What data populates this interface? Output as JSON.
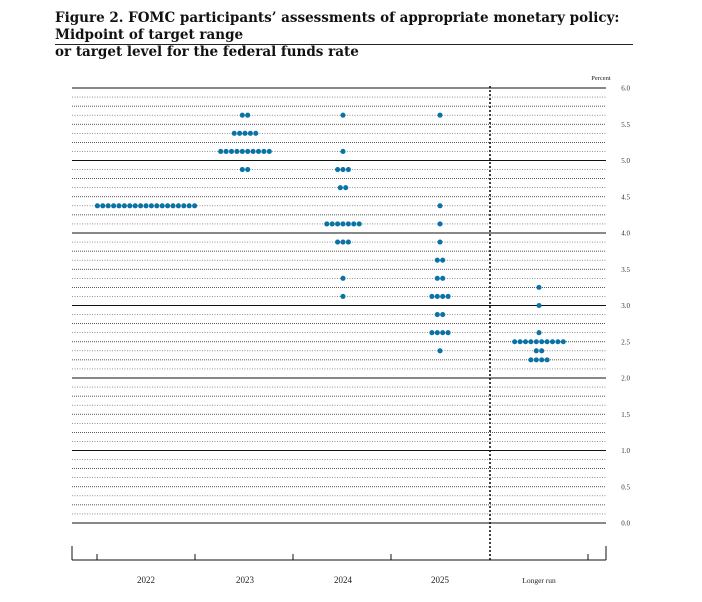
{
  "figure": {
    "title_line1": "Figure 2.  FOMC participants’ assessments of appropriate monetary policy:  Midpoint of target range",
    "title_line2": "or target level for the federal funds rate"
  },
  "chart_data": {
    "type": "scatter",
    "title": "Figure 2. FOMC participants’ assessments of appropriate monetary policy: Midpoint of target range or target level for the federal funds rate",
    "unit_label": "Percent",
    "categories": [
      "2022",
      "2023",
      "2024",
      "2025",
      "Longer run"
    ],
    "ylim": [
      0,
      6.0
    ],
    "y_ticks": [
      "0.0",
      "0.5",
      "1.0",
      "1.5",
      "2.0",
      "2.5",
      "3.0",
      "3.5",
      "4.0",
      "4.5",
      "5.0",
      "5.5",
      "6.0"
    ],
    "dot_color": "#0a73a6",
    "grid": true,
    "dots": [
      {
        "category": "2022",
        "y": 4.375,
        "count": 19
      },
      {
        "category": "2023",
        "y": 5.625,
        "count": 2
      },
      {
        "category": "2023",
        "y": 5.375,
        "count": 5
      },
      {
        "category": "2023",
        "y": 5.125,
        "count": 10
      },
      {
        "category": "2023",
        "y": 4.875,
        "count": 2
      },
      {
        "category": "2024",
        "y": 5.625,
        "count": 1
      },
      {
        "category": "2024",
        "y": 5.125,
        "count": 1
      },
      {
        "category": "2024",
        "y": 4.875,
        "count": 3
      },
      {
        "category": "2024",
        "y": 4.625,
        "count": 2
      },
      {
        "category": "2024",
        "y": 4.125,
        "count": 7
      },
      {
        "category": "2024",
        "y": 3.875,
        "count": 3
      },
      {
        "category": "2024",
        "y": 3.375,
        "count": 1
      },
      {
        "category": "2024",
        "y": 3.125,
        "count": 1
      },
      {
        "category": "2025",
        "y": 5.625,
        "count": 1
      },
      {
        "category": "2025",
        "y": 4.375,
        "count": 1
      },
      {
        "category": "2025",
        "y": 4.125,
        "count": 1
      },
      {
        "category": "2025",
        "y": 3.875,
        "count": 1
      },
      {
        "category": "2025",
        "y": 3.625,
        "count": 2
      },
      {
        "category": "2025",
        "y": 3.375,
        "count": 2
      },
      {
        "category": "2025",
        "y": 3.125,
        "count": 4
      },
      {
        "category": "2025",
        "y": 2.875,
        "count": 2
      },
      {
        "category": "2025",
        "y": 2.625,
        "count": 4
      },
      {
        "category": "2025",
        "y": 2.375,
        "count": 1
      },
      {
        "category": "Longer run",
        "y": 3.25,
        "count": 1
      },
      {
        "category": "Longer run",
        "y": 3.0,
        "count": 1
      },
      {
        "category": "Longer run",
        "y": 2.625,
        "count": 1
      },
      {
        "category": "Longer run",
        "y": 2.5,
        "count": 10
      },
      {
        "category": "Longer run",
        "y": 2.375,
        "count": 2
      },
      {
        "category": "Longer run",
        "y": 2.25,
        "count": 4
      }
    ]
  }
}
